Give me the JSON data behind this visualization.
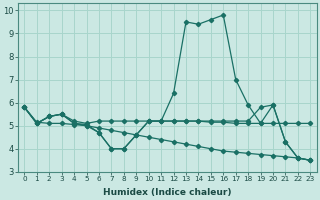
{
  "xlabel": "Humidex (Indice chaleur)",
  "background_color": "#cbe8e3",
  "grid_color": "#a8d5cc",
  "line_color": "#1a7065",
  "xlim": [
    -0.5,
    23.5
  ],
  "ylim": [
    3,
    10.3
  ],
  "xticks": [
    0,
    1,
    2,
    3,
    4,
    5,
    6,
    7,
    8,
    9,
    10,
    11,
    12,
    13,
    14,
    15,
    16,
    17,
    18,
    19,
    20,
    21,
    22,
    23
  ],
  "yticks": [
    3,
    4,
    5,
    6,
    7,
    8,
    9,
    10
  ],
  "lines": [
    {
      "x": [
        0,
        1,
        2,
        3,
        4,
        5,
        6,
        7,
        8,
        9,
        10,
        11,
        12,
        13,
        14,
        15,
        16,
        17,
        18,
        19,
        20,
        21,
        22,
        23
      ],
      "y": [
        5.8,
        5.1,
        5.4,
        5.5,
        5.1,
        5.0,
        4.7,
        4.0,
        4.0,
        4.6,
        5.2,
        5.2,
        6.4,
        9.5,
        9.4,
        9.6,
        9.8,
        7.0,
        5.9,
        5.1,
        5.9,
        4.3,
        3.6,
        3.5
      ]
    },
    {
      "x": [
        0,
        1,
        2,
        3,
        4,
        5,
        6,
        7,
        8,
        9,
        10,
        11,
        12,
        13,
        14,
        15,
        16,
        17,
        18,
        19,
        20,
        21,
        22,
        23
      ],
      "y": [
        5.8,
        5.1,
        5.4,
        5.5,
        5.2,
        5.1,
        5.2,
        5.2,
        5.2,
        5.2,
        5.2,
        5.2,
        5.2,
        5.2,
        5.2,
        5.15,
        5.15,
        5.1,
        5.1,
        5.1,
        5.1,
        5.1,
        5.1,
        5.1
      ]
    },
    {
      "x": [
        0,
        1,
        2,
        3,
        4,
        5,
        6,
        7,
        8,
        9,
        10,
        11,
        12,
        13,
        14,
        15,
        16,
        17,
        18,
        19,
        20,
        21,
        22,
        23
      ],
      "y": [
        5.8,
        5.15,
        5.1,
        5.1,
        5.05,
        5.0,
        4.9,
        4.8,
        4.7,
        4.6,
        4.5,
        4.4,
        4.3,
        4.2,
        4.1,
        4.0,
        3.9,
        3.85,
        3.8,
        3.75,
        3.7,
        3.65,
        3.6,
        3.5
      ]
    },
    {
      "x": [
        0,
        1,
        2,
        3,
        4,
        5,
        6,
        7,
        8,
        9,
        10,
        11,
        12,
        13,
        14,
        15,
        16,
        17,
        18,
        19,
        20,
        21,
        22,
        23
      ],
      "y": [
        5.8,
        5.1,
        5.4,
        5.5,
        5.1,
        5.05,
        4.7,
        4.0,
        4.0,
        4.6,
        5.2,
        5.2,
        5.2,
        5.2,
        5.2,
        5.2,
        5.2,
        5.2,
        5.2,
        5.8,
        5.9,
        4.3,
        3.6,
        3.5
      ]
    }
  ]
}
